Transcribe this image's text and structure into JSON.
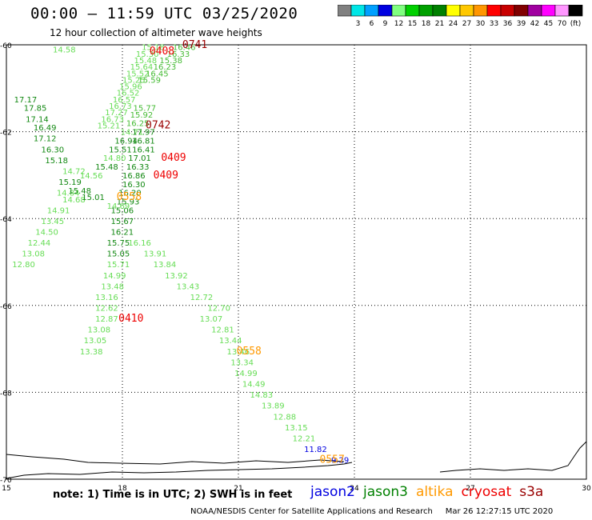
{
  "header": {
    "title": "00:00 – 11:59 UTC 03/25/2020",
    "subtitle": "12 hour collection of altimeter wave heights"
  },
  "colorbar": {
    "segments": [
      {
        "color": "#808080",
        "label": ""
      },
      {
        "color": "#00e6e6",
        "label": "3"
      },
      {
        "color": "#00a0ff",
        "label": "6"
      },
      {
        "color": "#0000e0",
        "label": "9"
      },
      {
        "color": "#80ff80",
        "label": "12"
      },
      {
        "color": "#00d000",
        "label": "15"
      },
      {
        "color": "#00a000",
        "label": "18"
      },
      {
        "color": "#008000",
        "label": "21"
      },
      {
        "color": "#ffff00",
        "label": "24"
      },
      {
        "color": "#ffc800",
        "label": "27"
      },
      {
        "color": "#ff9600",
        "label": "30"
      },
      {
        "color": "#ff0000",
        "label": "33"
      },
      {
        "color": "#c80000",
        "label": "36"
      },
      {
        "color": "#800000",
        "label": "39"
      },
      {
        "color": "#a000a0",
        "label": "42"
      },
      {
        "color": "#ff00ff",
        "label": "45"
      },
      {
        "color": "#ff96ff",
        "label": "70"
      },
      {
        "color": "#000000",
        "label": "(ft)"
      }
    ]
  },
  "map": {
    "lon_range": [
      15,
      30
    ],
    "lat_range": [
      -70,
      -60
    ],
    "lat_ticks": [
      "-60",
      "-62",
      "-64",
      "-66",
      "-68",
      "-70"
    ],
    "lon_ticks": [
      "15",
      "18",
      "21",
      "24",
      "27",
      "30"
    ],
    "grid_lons": [
      18,
      21,
      24,
      27
    ],
    "grid_lats": [
      -62,
      -64,
      -66,
      -68
    ],
    "colors": {
      "light": "#66dd55",
      "mid": "#44bb33",
      "dark": "#118811",
      "blue": "#0000e0",
      "red": "#ee0000",
      "darkred": "#990000",
      "orange": "#ff9900"
    },
    "labels": [
      {
        "lon": 16.2,
        "lat": -60.1,
        "t": "14.58",
        "c": "light"
      },
      {
        "lon": 18.5,
        "lat": -60.05,
        "t": "15.18",
        "c": "light"
      },
      {
        "lon": 18.35,
        "lat": -60.2,
        "t": "15.30",
        "c": "light"
      },
      {
        "lon": 18.3,
        "lat": -60.35,
        "t": "15.48",
        "c": "light"
      },
      {
        "lon": 18.2,
        "lat": -60.5,
        "t": "15.64",
        "c": "light"
      },
      {
        "lon": 18.1,
        "lat": -60.65,
        "t": "15.52",
        "c": "light"
      },
      {
        "lon": 18.0,
        "lat": -60.8,
        "t": "15.25",
        "c": "light"
      },
      {
        "lon": 17.92,
        "lat": -60.95,
        "t": "15.96",
        "c": "light"
      },
      {
        "lon": 17.85,
        "lat": -61.1,
        "t": "16.52",
        "c": "light"
      },
      {
        "lon": 17.75,
        "lat": -61.25,
        "t": "16.57",
        "c": "light"
      },
      {
        "lon": 17.65,
        "lat": -61.4,
        "t": "16.73",
        "c": "light"
      },
      {
        "lon": 17.55,
        "lat": -61.55,
        "t": "17.27",
        "c": "light"
      },
      {
        "lon": 17.45,
        "lat": -61.7,
        "t": "16.73",
        "c": "light"
      },
      {
        "lon": 17.35,
        "lat": -61.85,
        "t": "15.21",
        "c": "light"
      },
      {
        "lon": 19.3,
        "lat": -60.05,
        "t": "16.46",
        "c": "mid"
      },
      {
        "lon": 19.15,
        "lat": -60.2,
        "t": "16.33",
        "c": "mid"
      },
      {
        "lon": 18.96,
        "lat": -60.35,
        "t": "15.38",
        "c": "mid"
      },
      {
        "lon": 18.8,
        "lat": -60.5,
        "t": "16.23",
        "c": "mid"
      },
      {
        "lon": 18.6,
        "lat": -60.65,
        "t": "16.45",
        "c": "mid"
      },
      {
        "lon": 18.4,
        "lat": -60.8,
        "t": "15.59",
        "c": "mid"
      },
      {
        "lon": 18.28,
        "lat": -61.45,
        "t": "15.77",
        "c": "mid"
      },
      {
        "lon": 18.2,
        "lat": -61.6,
        "t": "15.92",
        "c": "mid"
      },
      {
        "lon": 18.1,
        "lat": -61.8,
        "t": "16.25",
        "c": "mid"
      },
      {
        "lon": 17.95,
        "lat": -62.0,
        "t": "14.71",
        "c": "light"
      },
      {
        "lon": 17.8,
        "lat": -62.2,
        "t": "16.94",
        "c": "dark"
      },
      {
        "lon": 17.65,
        "lat": -62.4,
        "t": "15.51",
        "c": "dark"
      },
      {
        "lon": 17.5,
        "lat": -62.6,
        "t": "14.80",
        "c": "light"
      },
      {
        "lon": 17.3,
        "lat": -62.8,
        "t": "15.48",
        "c": "dark"
      },
      {
        "lon": 18.25,
        "lat": -62.0,
        "t": "17.97",
        "c": "dark"
      },
      {
        "lon": 18.25,
        "lat": -62.2,
        "t": "16.81",
        "c": "dark"
      },
      {
        "lon": 18.25,
        "lat": -62.4,
        "t": "16.41",
        "c": "dark"
      },
      {
        "lon": 18.15,
        "lat": -62.6,
        "t": "17.01",
        "c": "dark"
      },
      {
        "lon": 18.1,
        "lat": -62.8,
        "t": "16.33",
        "c": "dark"
      },
      {
        "lon": 18.0,
        "lat": -63.0,
        "t": "16.86",
        "c": "dark"
      },
      {
        "lon": 18.0,
        "lat": -63.2,
        "t": "16.30",
        "c": "dark"
      },
      {
        "lon": 17.9,
        "lat": -63.4,
        "t": "16.20",
        "c": "dark"
      },
      {
        "lon": 17.85,
        "lat": -63.6,
        "t": "15.93",
        "c": "dark"
      },
      {
        "lon": 17.7,
        "lat": -63.8,
        "t": "15.06",
        "c": "dark"
      },
      {
        "lon": 17.7,
        "lat": -64.05,
        "t": "15.67",
        "c": "dark"
      },
      {
        "lon": 17.7,
        "lat": -64.3,
        "t": "16.21",
        "c": "dark"
      },
      {
        "lon": 17.6,
        "lat": -64.55,
        "t": "15.75",
        "c": "dark"
      },
      {
        "lon": 17.6,
        "lat": -64.8,
        "t": "15.05",
        "c": "dark"
      },
      {
        "lon": 17.6,
        "lat": -65.05,
        "t": "15.71",
        "c": "light"
      },
      {
        "lon": 17.5,
        "lat": -65.3,
        "t": "14.99",
        "c": "light"
      },
      {
        "lon": 17.45,
        "lat": -65.55,
        "t": "13.48",
        "c": "light"
      },
      {
        "lon": 17.3,
        "lat": -65.8,
        "t": "13.16",
        "c": "light"
      },
      {
        "lon": 17.3,
        "lat": -66.05,
        "t": "12.62",
        "c": "light"
      },
      {
        "lon": 17.3,
        "lat": -66.3,
        "t": "12.87",
        "c": "light"
      },
      {
        "lon": 17.1,
        "lat": -66.55,
        "t": "13.08",
        "c": "light"
      },
      {
        "lon": 17.0,
        "lat": -66.8,
        "t": "13.05",
        "c": "light"
      },
      {
        "lon": 16.9,
        "lat": -67.05,
        "t": "13.38",
        "c": "light"
      },
      {
        "lon": 15.2,
        "lat": -61.25,
        "t": "17.17",
        "c": "dark"
      },
      {
        "lon": 15.45,
        "lat": -61.45,
        "t": "17.85",
        "c": "dark"
      },
      {
        "lon": 15.5,
        "lat": -61.7,
        "t": "17.14",
        "c": "dark"
      },
      {
        "lon": 15.7,
        "lat": -61.9,
        "t": "16.49",
        "c": "dark"
      },
      {
        "lon": 15.7,
        "lat": -62.15,
        "t": "17.12",
        "c": "dark"
      },
      {
        "lon": 15.9,
        "lat": -62.4,
        "t": "16.30",
        "c": "dark"
      },
      {
        "lon": 16.0,
        "lat": -62.65,
        "t": "15.18",
        "c": "dark"
      },
      {
        "lon": 16.45,
        "lat": -62.9,
        "t": "14.72",
        "c": "light"
      },
      {
        "lon": 16.9,
        "lat": -63.0,
        "t": "14.56",
        "c": "light"
      },
      {
        "lon": 16.35,
        "lat": -63.15,
        "t": "15.19",
        "c": "dark"
      },
      {
        "lon": 16.3,
        "lat": -63.4,
        "t": "14.84",
        "c": "light"
      },
      {
        "lon": 16.6,
        "lat": -63.35,
        "t": "15.48",
        "c": "dark"
      },
      {
        "lon": 16.45,
        "lat": -63.55,
        "t": "14.68",
        "c": "light"
      },
      {
        "lon": 16.95,
        "lat": -63.5,
        "t": "15.01",
        "c": "dark"
      },
      {
        "lon": 16.05,
        "lat": -63.8,
        "t": "14.91",
        "c": "light"
      },
      {
        "lon": 15.9,
        "lat": -64.05,
        "t": "13.45",
        "c": "light"
      },
      {
        "lon": 15.75,
        "lat": -64.3,
        "t": "14.50",
        "c": "light"
      },
      {
        "lon": 15.55,
        "lat": -64.55,
        "t": "12.44",
        "c": "light"
      },
      {
        "lon": 15.4,
        "lat": -64.8,
        "t": "13.08",
        "c": "light"
      },
      {
        "lon": 15.15,
        "lat": -65.05,
        "t": "12.80",
        "c": "light"
      },
      {
        "lon": 17.6,
        "lat": -63.7,
        "t": "14.69",
        "c": "light"
      },
      {
        "lon": 18.15,
        "lat": -64.55,
        "t": "16.16",
        "c": "light"
      },
      {
        "lon": 18.55,
        "lat": -64.8,
        "t": "13.91",
        "c": "light"
      },
      {
        "lon": 18.8,
        "lat": -65.05,
        "t": "13.84",
        "c": "light"
      },
      {
        "lon": 19.1,
        "lat": -65.3,
        "t": "13.92",
        "c": "light"
      },
      {
        "lon": 19.4,
        "lat": -65.55,
        "t": "13.43",
        "c": "light"
      },
      {
        "lon": 19.75,
        "lat": -65.8,
        "t": "12.72",
        "c": "light"
      },
      {
        "lon": 20.2,
        "lat": -66.05,
        "t": "12.70",
        "c": "light"
      },
      {
        "lon": 20.0,
        "lat": -66.3,
        "t": "13.07",
        "c": "light"
      },
      {
        "lon": 20.3,
        "lat": -66.55,
        "t": "12.81",
        "c": "light"
      },
      {
        "lon": 20.5,
        "lat": -66.8,
        "t": "13.44",
        "c": "light"
      },
      {
        "lon": 20.7,
        "lat": -67.05,
        "t": "13.46",
        "c": "light"
      },
      {
        "lon": 20.8,
        "lat": -67.3,
        "t": "13.34",
        "c": "light"
      },
      {
        "lon": 20.9,
        "lat": -67.55,
        "t": "14.99",
        "c": "light"
      },
      {
        "lon": 21.1,
        "lat": -67.8,
        "t": "14.49",
        "c": "light"
      },
      {
        "lon": 21.3,
        "lat": -68.05,
        "t": "14.83",
        "c": "light"
      },
      {
        "lon": 21.6,
        "lat": -68.3,
        "t": "13.89",
        "c": "light"
      },
      {
        "lon": 21.9,
        "lat": -68.55,
        "t": "12.88",
        "c": "light"
      },
      {
        "lon": 22.2,
        "lat": -68.8,
        "t": "13.15",
        "c": "light"
      },
      {
        "lon": 22.4,
        "lat": -69.05,
        "t": "12.21",
        "c": "light"
      },
      {
        "lon": 22.7,
        "lat": -69.3,
        "t": "11.82",
        "c": "blue"
      },
      {
        "lon": 23.4,
        "lat": -69.55,
        "t": "9.29",
        "c": "blue"
      },
      {
        "lon": 18.7,
        "lat": -60.15,
        "t": "0408",
        "c": "red",
        "big": true
      },
      {
        "lon": 19.55,
        "lat": -60.0,
        "t": "0741",
        "c": "darkred",
        "big": true
      },
      {
        "lon": 18.6,
        "lat": -61.85,
        "t": "0742",
        "c": "darkred",
        "big": true
      },
      {
        "lon": 19.0,
        "lat": -62.6,
        "t": "0409",
        "c": "red",
        "big": true
      },
      {
        "lon": 18.8,
        "lat": -63.0,
        "t": "0409",
        "c": "red",
        "big": true
      },
      {
        "lon": 17.85,
        "lat": -63.5,
        "t": "0558",
        "c": "orange",
        "big": true
      },
      {
        "lon": 17.9,
        "lat": -66.3,
        "t": "0410",
        "c": "red",
        "big": true
      },
      {
        "lon": 20.95,
        "lat": -67.05,
        "t": "0558",
        "c": "orange",
        "big": true
      },
      {
        "lon": 23.1,
        "lat": -69.55,
        "t": "0557",
        "c": "orange",
        "big": true
      }
    ]
  },
  "footer": {
    "note": "note: 1) Time is in UTC; 2) SWH is in feet",
    "missions": [
      {
        "name": "jason2",
        "color": "#0000e0"
      },
      {
        "name": "jason3",
        "color": "#008000"
      },
      {
        "name": "altika",
        "color": "#ff9900"
      },
      {
        "name": "cryosat",
        "color": "#ee0000"
      },
      {
        "name": "s3a",
        "color": "#990000"
      }
    ],
    "credit": "NOAA/NESDIS Center for Satellite Applications and Research     Mar 26 12:27:15 UTC 2020"
  }
}
